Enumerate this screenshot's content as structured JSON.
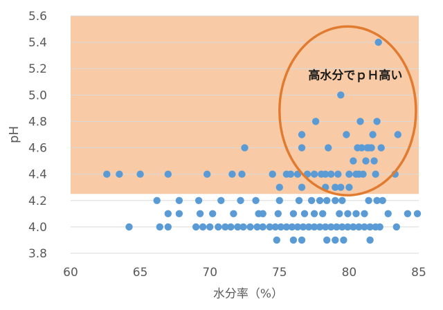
{
  "chart_data": {
    "type": "scatter",
    "title": "",
    "xlabel": "水分率（%）",
    "ylabel": "pH",
    "xlim": [
      60,
      85
    ],
    "ylim": [
      3.8,
      5.6
    ],
    "x_ticks": [
      "60",
      "65",
      "70",
      "75",
      "80",
      "85"
    ],
    "y_ticks": [
      "3.8",
      "4.0",
      "4.2",
      "4.4",
      "4.6",
      "4.8",
      "5.0",
      "5.2",
      "5.4",
      "5.6"
    ],
    "grid": true,
    "legend": "none",
    "shaded_region": {
      "y_from": 4.25,
      "y_to": 5.6,
      "color": "#f8cba6"
    },
    "annotation": {
      "text": "高水分でｐＨ高い",
      "ellipse": {
        "cx": 79.9,
        "cy": 4.88,
        "rx": 4.9,
        "ry": 0.64,
        "color": "#e07b30"
      }
    },
    "marker_color": "#5b9bd5",
    "series": [
      {
        "points": [
          [
            62.6,
            4.4
          ],
          [
            63.5,
            4.4
          ],
          [
            65.0,
            4.4
          ],
          [
            67.0,
            4.4
          ],
          [
            69.8,
            4.4
          ],
          [
            71.6,
            4.4
          ],
          [
            72.3,
            4.4
          ],
          [
            72.5,
            4.6
          ],
          [
            74.5,
            4.4
          ],
          [
            75.5,
            4.4
          ],
          [
            75.8,
            4.4
          ],
          [
            76.3,
            4.4
          ],
          [
            76.6,
            4.6
          ],
          [
            76.6,
            4.7
          ],
          [
            77.5,
            4.4
          ],
          [
            77.6,
            4.8
          ],
          [
            78.0,
            4.4
          ],
          [
            78.3,
            4.4
          ],
          [
            78.5,
            4.6
          ],
          [
            79.2,
            4.4
          ],
          [
            79.4,
            5.0
          ],
          [
            79.8,
            4.7
          ],
          [
            80.0,
            4.4
          ],
          [
            80.3,
            4.5
          ],
          [
            80.5,
            4.4
          ],
          [
            80.6,
            4.6
          ],
          [
            80.8,
            4.8
          ],
          [
            81.0,
            4.4
          ],
          [
            81.2,
            4.5
          ],
          [
            81.4,
            4.6
          ],
          [
            81.6,
            4.6
          ],
          [
            81.7,
            4.7
          ],
          [
            81.8,
            4.5
          ],
          [
            81.9,
            4.4
          ],
          [
            82.0,
            4.8
          ],
          [
            82.1,
            5.4
          ],
          [
            82.3,
            4.6
          ],
          [
            83.5,
            4.7
          ],
          [
            83.3,
            4.4
          ],
          [
            80.7,
            4.4
          ],
          [
            79.0,
            4.3
          ],
          [
            78.7,
            4.4
          ],
          [
            77.0,
            4.4
          ],
          [
            81.3,
            4.6
          ],
          [
            80.9,
            4.6
          ],
          [
            66.2,
            4.2
          ],
          [
            67.8,
            4.2
          ],
          [
            69.2,
            4.2
          ],
          [
            70.8,
            4.2
          ],
          [
            72.2,
            4.2
          ],
          [
            73.3,
            4.2
          ],
          [
            75.0,
            4.2
          ],
          [
            76.4,
            4.2
          ],
          [
            77.3,
            4.2
          ],
          [
            77.9,
            4.2
          ],
          [
            78.4,
            4.2
          ],
          [
            79.0,
            4.2
          ],
          [
            79.5,
            4.2
          ],
          [
            81.4,
            4.2
          ],
          [
            82.0,
            4.2
          ],
          [
            82.4,
            4.2
          ],
          [
            75.0,
            4.3
          ],
          [
            76.6,
            4.3
          ],
          [
            78.3,
            4.3
          ],
          [
            79.4,
            4.3
          ],
          [
            80.0,
            4.3
          ],
          [
            67.0,
            4.1
          ],
          [
            67.8,
            4.1
          ],
          [
            69.3,
            4.1
          ],
          [
            70.2,
            4.1
          ],
          [
            71.7,
            4.1
          ],
          [
            73.5,
            4.1
          ],
          [
            73.8,
            4.1
          ],
          [
            74.9,
            4.1
          ],
          [
            76.0,
            4.1
          ],
          [
            76.8,
            4.1
          ],
          [
            77.5,
            4.1
          ],
          [
            78.1,
            4.1
          ],
          [
            79.3,
            4.1
          ],
          [
            79.9,
            4.1
          ],
          [
            80.5,
            4.1
          ],
          [
            81.1,
            4.1
          ],
          [
            82.8,
            4.1
          ],
          [
            84.2,
            4.1
          ],
          [
            84.9,
            4.1
          ],
          [
            64.2,
            4.0
          ],
          [
            66.4,
            4.0
          ],
          [
            67.0,
            4.0
          ],
          [
            69.0,
            4.0
          ],
          [
            69.5,
            4.0
          ],
          [
            70.0,
            4.0
          ],
          [
            70.6,
            4.0
          ],
          [
            71.1,
            4.0
          ],
          [
            71.5,
            4.0
          ],
          [
            72.0,
            4.0
          ],
          [
            72.4,
            4.0
          ],
          [
            72.9,
            4.0
          ],
          [
            73.4,
            4.0
          ],
          [
            73.8,
            4.0
          ],
          [
            74.3,
            4.0
          ],
          [
            74.7,
            4.0
          ],
          [
            75.1,
            4.0
          ],
          [
            75.5,
            4.0
          ],
          [
            75.9,
            4.0
          ],
          [
            76.3,
            4.0
          ],
          [
            76.7,
            4.0
          ],
          [
            77.1,
            4.0
          ],
          [
            77.5,
            4.0
          ],
          [
            77.9,
            4.0
          ],
          [
            78.3,
            4.0
          ],
          [
            78.7,
            4.0
          ],
          [
            79.1,
            4.0
          ],
          [
            79.5,
            4.0
          ],
          [
            79.9,
            4.0
          ],
          [
            80.3,
            4.0
          ],
          [
            80.7,
            4.0
          ],
          [
            81.1,
            4.0
          ],
          [
            81.5,
            4.0
          ],
          [
            81.9,
            4.0
          ],
          [
            82.2,
            4.0
          ],
          [
            83.4,
            4.0
          ],
          [
            74.8,
            3.9
          ],
          [
            76.0,
            3.9
          ],
          [
            76.6,
            3.9
          ],
          [
            78.4,
            3.9
          ],
          [
            79.0,
            3.9
          ],
          [
            79.6,
            3.9
          ],
          [
            81.5,
            3.9
          ]
        ]
      }
    ]
  }
}
